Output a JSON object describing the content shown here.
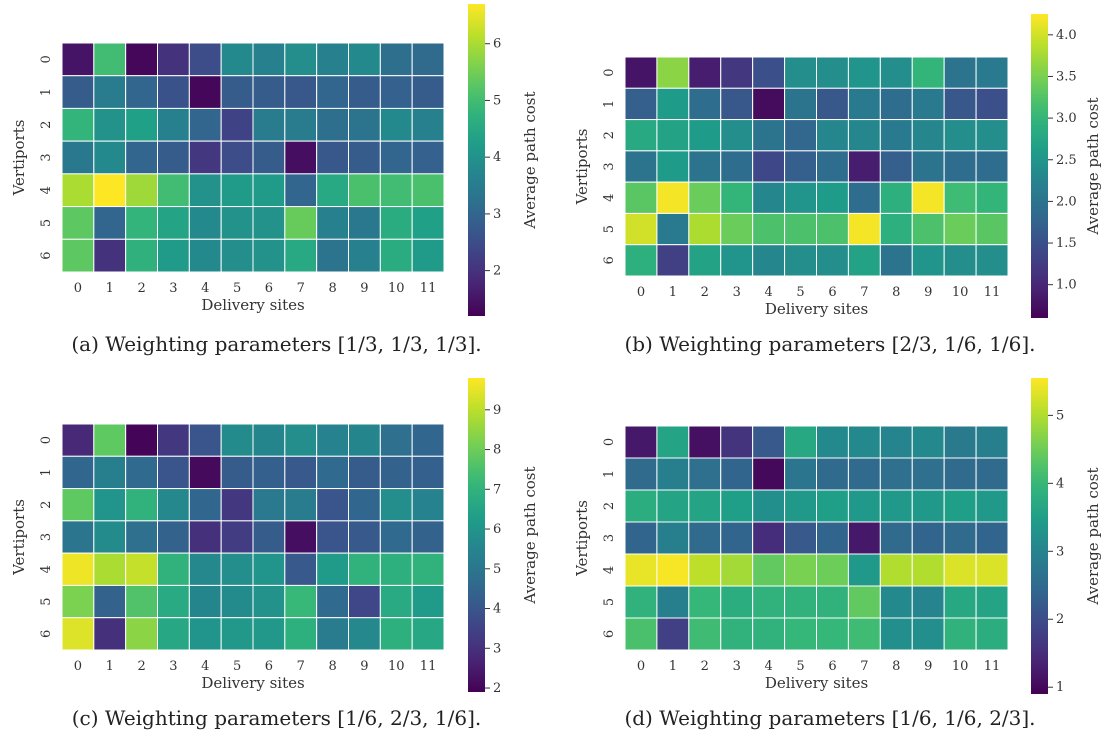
{
  "colormap": "viridis",
  "cell_border_color": "#ffffff",
  "chart_data": [
    {
      "type": "heatmap",
      "caption": "(a) Weighting parameters [1/3, 1/3, 1/3].",
      "xlabel": "Delivery sites",
      "ylabel": "Vertiports",
      "colorbar_label": "Average path cost",
      "x": [
        "0",
        "1",
        "2",
        "3",
        "4",
        "5",
        "6",
        "7",
        "8",
        "9",
        "10",
        "11"
      ],
      "y": [
        "0",
        "1",
        "2",
        "3",
        "4",
        "5",
        "6"
      ],
      "zlim": [
        1.2,
        6.7
      ],
      "colorbar_ticks": [
        "2",
        "3",
        "4",
        "5",
        "6"
      ],
      "values": [
        [
          1.5,
          5.0,
          1.3,
          2.0,
          2.5,
          3.8,
          3.6,
          3.9,
          3.6,
          3.8,
          3.2,
          3.1
        ],
        [
          2.8,
          3.5,
          3.0,
          2.6,
          1.3,
          2.8,
          2.8,
          2.7,
          3.0,
          2.8,
          2.9,
          2.8
        ],
        [
          4.8,
          4.0,
          4.3,
          3.6,
          3.0,
          2.3,
          3.5,
          3.5,
          3.2,
          3.3,
          3.8,
          3.6
        ],
        [
          3.4,
          3.8,
          3.0,
          2.8,
          2.1,
          2.5,
          2.8,
          1.4,
          2.7,
          2.8,
          3.0,
          2.9
        ],
        [
          6.0,
          6.7,
          5.9,
          5.0,
          4.0,
          4.2,
          4.2,
          3.0,
          4.5,
          5.1,
          5.0,
          5.1
        ],
        [
          5.3,
          3.0,
          4.8,
          4.4,
          3.8,
          4.0,
          4.0,
          5.4,
          3.6,
          3.4,
          4.6,
          4.3
        ],
        [
          5.3,
          2.0,
          4.7,
          4.2,
          3.8,
          3.9,
          4.0,
          4.5,
          3.3,
          3.6,
          4.6,
          4.2
        ]
      ]
    },
    {
      "type": "heatmap",
      "caption": "(b) Weighting parameters [2/3, 1/6, 1/6].",
      "xlabel": "Delivery sites",
      "ylabel": "Vertiports",
      "colorbar_label": "Average path cost",
      "x": [
        "0",
        "1",
        "2",
        "3",
        "4",
        "5",
        "6",
        "7",
        "8",
        "9",
        "10",
        "11"
      ],
      "y": [
        "0",
        "1",
        "2",
        "3",
        "4",
        "5",
        "6"
      ],
      "zlim": [
        0.6,
        4.25
      ],
      "colorbar_ticks": [
        "1.0",
        "1.5",
        "2.0",
        "2.5",
        "3.0",
        "3.5",
        "4.0"
      ],
      "values": [
        [
          0.8,
          3.6,
          0.9,
          1.2,
          1.5,
          2.4,
          2.4,
          2.5,
          2.4,
          3.0,
          2.0,
          2.1
        ],
        [
          1.7,
          2.6,
          1.9,
          1.6,
          0.7,
          2.0,
          1.6,
          2.1,
          1.9,
          2.1,
          1.6,
          1.5
        ],
        [
          2.8,
          2.7,
          2.6,
          2.4,
          2.0,
          1.8,
          2.3,
          2.3,
          2.1,
          2.3,
          2.4,
          2.4
        ],
        [
          2.0,
          2.6,
          2.0,
          1.9,
          1.4,
          1.7,
          1.9,
          0.9,
          1.7,
          2.0,
          1.9,
          1.9
        ],
        [
          3.3,
          4.2,
          3.4,
          3.0,
          2.3,
          2.5,
          2.6,
          1.9,
          2.9,
          4.2,
          3.1,
          3.0
        ],
        [
          4.0,
          2.1,
          3.8,
          3.4,
          3.2,
          3.2,
          3.2,
          4.2,
          2.9,
          3.2,
          3.4,
          3.3
        ],
        [
          2.9,
          1.3,
          2.7,
          2.5,
          2.3,
          2.4,
          2.4,
          2.7,
          2.0,
          2.5,
          2.4,
          2.4
        ]
      ]
    },
    {
      "type": "heatmap",
      "caption": "(c) Weighting parameters [1/6, 2/3, 1/6].",
      "xlabel": "Delivery sites",
      "ylabel": "Vertiports",
      "colorbar_label": "Average path cost",
      "x": [
        "0",
        "1",
        "2",
        "3",
        "4",
        "5",
        "6",
        "7",
        "8",
        "9",
        "10",
        "11"
      ],
      "y": [
        "0",
        "1",
        "2",
        "3",
        "4",
        "5",
        "6"
      ],
      "zlim": [
        1.9,
        9.8
      ],
      "colorbar_ticks": [
        "2",
        "3",
        "4",
        "5",
        "6",
        "7",
        "8",
        "9"
      ],
      "values": [
        [
          2.8,
          7.8,
          2.0,
          3.2,
          4.0,
          5.7,
          5.5,
          5.8,
          5.4,
          5.5,
          4.8,
          4.5
        ],
        [
          4.5,
          5.3,
          4.6,
          4.0,
          2.1,
          4.2,
          4.3,
          4.1,
          4.6,
          4.2,
          4.4,
          4.3
        ],
        [
          7.8,
          6.0,
          7.0,
          5.6,
          4.5,
          3.2,
          5.1,
          5.2,
          4.0,
          4.5,
          5.8,
          5.4
        ],
        [
          5.0,
          5.7,
          4.8,
          4.4,
          3.0,
          3.3,
          4.2,
          2.2,
          4.0,
          4.1,
          4.6,
          4.4
        ],
        [
          9.6,
          8.8,
          9.1,
          7.0,
          5.6,
          5.8,
          6.0,
          4.1,
          6.2,
          7.0,
          6.9,
          7.0
        ],
        [
          8.2,
          4.4,
          7.6,
          6.7,
          5.5,
          5.7,
          5.9,
          7.2,
          4.6,
          3.6,
          6.7,
          6.2
        ],
        [
          9.4,
          3.0,
          8.4,
          6.6,
          6.0,
          6.1,
          6.1,
          6.9,
          5.2,
          5.6,
          6.9,
          6.6
        ]
      ]
    },
    {
      "type": "heatmap",
      "caption": "(d) Weighting parameters [1/6, 1/6, 2/3].",
      "xlabel": "Delivery sites",
      "ylabel": "Vertiports",
      "colorbar_label": "Average path cost",
      "x": [
        "0",
        "1",
        "2",
        "3",
        "4",
        "5",
        "6",
        "7",
        "8",
        "9",
        "10",
        "11"
      ],
      "y": [
        "0",
        "1",
        "2",
        "3",
        "4",
        "5",
        "6"
      ],
      "zlim": [
        0.9,
        5.55
      ],
      "colorbar_ticks": [
        "1",
        "2",
        "3",
        "4",
        "5"
      ],
      "values": [
        [
          1.2,
          3.6,
          1.1,
          1.6,
          2.2,
          3.7,
          3.1,
          3.1,
          3.0,
          3.1,
          2.8,
          2.9
        ],
        [
          2.5,
          2.9,
          2.6,
          2.4,
          1.0,
          2.7,
          2.5,
          2.5,
          2.6,
          2.6,
          2.5,
          2.5
        ],
        [
          3.8,
          3.6,
          3.6,
          3.5,
          3.2,
          3.4,
          3.5,
          3.4,
          3.4,
          3.4,
          3.5,
          3.4
        ],
        [
          2.4,
          2.9,
          2.5,
          2.4,
          1.5,
          2.2,
          2.4,
          1.2,
          2.5,
          2.4,
          2.5,
          2.4
        ],
        [
          5.4,
          5.5,
          5.1,
          4.9,
          4.4,
          4.6,
          4.5,
          3.4,
          5.0,
          5.0,
          5.3,
          5.3
        ],
        [
          3.9,
          2.9,
          4.0,
          3.8,
          3.9,
          3.9,
          3.9,
          4.4,
          3.1,
          3.0,
          3.7,
          3.6
        ],
        [
          4.2,
          1.8,
          4.1,
          3.9,
          3.9,
          4.0,
          4.0,
          4.1,
          3.2,
          3.2,
          3.9,
          3.8
        ]
      ]
    }
  ]
}
